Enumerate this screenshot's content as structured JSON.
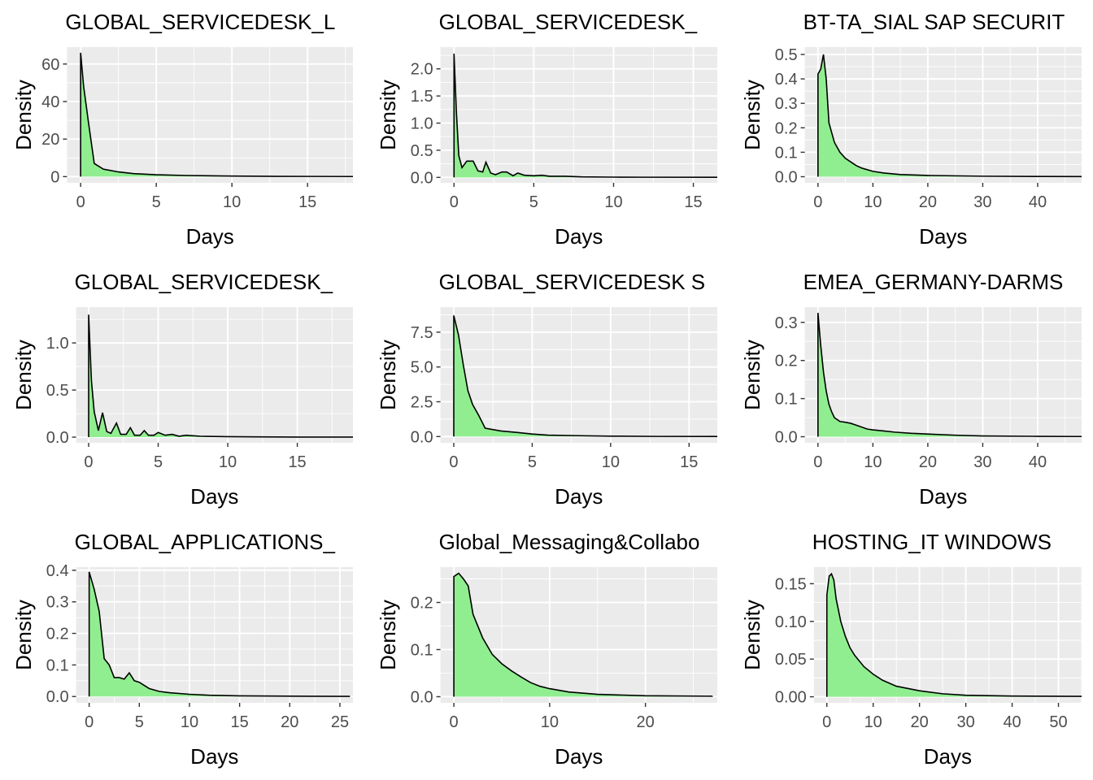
{
  "figure": {
    "background": "#ffffff",
    "panel_background": "#ebebeb",
    "grid_color": "#ffffff",
    "fill_color": "#90ee90",
    "line_color": "#000000",
    "tick_text_color": "#4d4d4d"
  },
  "chart_data": [
    {
      "type": "area",
      "title": "GLOBAL_SERVICEDESK_L",
      "xlabel": "Days",
      "ylabel": "Density",
      "xlim": [
        -0.9,
        18
      ],
      "ylim": [
        -3.3,
        69
      ],
      "xticks": [
        0,
        5,
        10,
        15
      ],
      "yticks": [
        0,
        20,
        40,
        60
      ],
      "x": [
        0,
        0.2,
        0.5,
        0.9,
        1.5,
        2.5,
        3.5,
        5,
        7,
        10,
        13,
        18
      ],
      "y": [
        66,
        48,
        30,
        7,
        4,
        2.5,
        1.6,
        1.0,
        0.6,
        0.3,
        0.15,
        0.05
      ]
    },
    {
      "type": "area",
      "title": "GLOBAL_SERVICEDESK_",
      "xlabel": "Days",
      "ylabel": "Density",
      "xlim": [
        -0.85,
        16.5
      ],
      "ylim": [
        -0.1,
        2.4
      ],
      "xticks": [
        0,
        5,
        10,
        15
      ],
      "yticks": [
        0,
        0.5,
        1.0,
        1.5,
        2.0
      ],
      "x": [
        0,
        0.15,
        0.3,
        0.5,
        0.8,
        1.2,
        1.5,
        1.8,
        2.0,
        2.3,
        2.6,
        3.0,
        3.3,
        3.7,
        4.0,
        4.4,
        5.0,
        5.5,
        6,
        7,
        8,
        10,
        12,
        16.5
      ],
      "y": [
        2.28,
        1.2,
        0.4,
        0.18,
        0.3,
        0.3,
        0.12,
        0.1,
        0.28,
        0.08,
        0.05,
        0.1,
        0.1,
        0.03,
        0.08,
        0.04,
        0.03,
        0.04,
        0.02,
        0.02,
        0.01,
        0.005,
        0.003,
        0.002
      ]
    },
    {
      "type": "area",
      "title": "BT-TA_SIAL SAP SECURIT",
      "xlabel": "Days",
      "ylabel": "Density",
      "xlim": [
        -2.4,
        48
      ],
      "ylim": [
        -0.025,
        0.53
      ],
      "xticks": [
        0,
        10,
        20,
        30,
        40
      ],
      "yticks": [
        0,
        0.1,
        0.2,
        0.3,
        0.4,
        0.5
      ],
      "x": [
        0,
        0.5,
        1.0,
        1.5,
        2,
        3,
        4,
        5,
        6,
        7,
        8,
        10,
        12,
        15,
        20,
        30,
        40,
        48
      ],
      "y": [
        0.42,
        0.44,
        0.5,
        0.4,
        0.22,
        0.14,
        0.1,
        0.075,
        0.06,
        0.045,
        0.035,
        0.022,
        0.015,
        0.009,
        0.005,
        0.002,
        0.001,
        0.0005
      ]
    },
    {
      "type": "area",
      "title": "GLOBAL_SERVICEDESK_",
      "xlabel": "Days",
      "ylabel": "Density",
      "xlim": [
        -0.9,
        19
      ],
      "ylim": [
        -0.06,
        1.38
      ],
      "xticks": [
        0,
        5,
        10,
        15
      ],
      "yticks": [
        0,
        0.5,
        1.0
      ],
      "x": [
        0,
        0.2,
        0.4,
        0.7,
        1.0,
        1.3,
        1.6,
        2.0,
        2.3,
        2.7,
        3.0,
        3.3,
        3.7,
        4.0,
        4.3,
        4.7,
        5.0,
        5.5,
        6.0,
        6.5,
        7.0,
        8,
        10,
        12,
        15,
        19
      ],
      "y": [
        1.3,
        0.6,
        0.27,
        0.07,
        0.26,
        0.06,
        0.04,
        0.15,
        0.03,
        0.03,
        0.1,
        0.02,
        0.02,
        0.07,
        0.02,
        0.02,
        0.05,
        0.02,
        0.03,
        0.01,
        0.02,
        0.01,
        0.005,
        0.003,
        0.001,
        0.001
      ]
    },
    {
      "type": "area",
      "title": "GLOBAL_SERVICEDESK S",
      "xlabel": "Days",
      "ylabel": "Density",
      "xlim": [
        -0.85,
        16.8
      ],
      "ylim": [
        -0.45,
        9.3
      ],
      "xticks": [
        0,
        5,
        10,
        15
      ],
      "yticks": [
        0,
        2.5,
        5.0,
        7.5
      ],
      "x": [
        0,
        0.3,
        0.6,
        0.9,
        1.2,
        1.6,
        2,
        3,
        4,
        5,
        6,
        8,
        10,
        13,
        16.8
      ],
      "y": [
        8.7,
        7.3,
        5.2,
        3.3,
        2.3,
        1.5,
        0.6,
        0.4,
        0.3,
        0.18,
        0.1,
        0.06,
        0.03,
        0.01,
        0.005
      ]
    },
    {
      "type": "area",
      "title": "EMEA_GERMANY-DARMS",
      "xlabel": "Days",
      "ylabel": "Density",
      "xlim": [
        -2.4,
        48
      ],
      "ylim": [
        -0.016,
        0.34
      ],
      "xticks": [
        0,
        10,
        20,
        30,
        40
      ],
      "yticks": [
        0,
        0.1,
        0.2,
        0.3
      ],
      "x": [
        0,
        0.5,
        1,
        1.5,
        2,
        2.5,
        3,
        4,
        5,
        6,
        7,
        8,
        9,
        10,
        12,
        14,
        17,
        20,
        25,
        30,
        40,
        48
      ],
      "y": [
        0.325,
        0.24,
        0.17,
        0.12,
        0.085,
        0.065,
        0.05,
        0.04,
        0.038,
        0.035,
        0.03,
        0.025,
        0.02,
        0.018,
        0.015,
        0.012,
        0.009,
        0.007,
        0.004,
        0.002,
        0.001,
        0.0005
      ]
    },
    {
      "type": "area",
      "title": "GLOBAL_APPLICATIONS_",
      "xlabel": "Days",
      "ylabel": "Density",
      "xlim": [
        -1.3,
        26.3
      ],
      "ylim": [
        -0.02,
        0.41
      ],
      "xticks": [
        0,
        5,
        10,
        15,
        20,
        25
      ],
      "yticks": [
        0,
        0.1,
        0.2,
        0.3,
        0.4
      ],
      "x": [
        0,
        0.5,
        1,
        1.5,
        2,
        2.5,
        3,
        3.5,
        4,
        4.5,
        5,
        5.5,
        6,
        7,
        8,
        10,
        12,
        15,
        20,
        26
      ],
      "y": [
        0.395,
        0.34,
        0.27,
        0.12,
        0.1,
        0.06,
        0.06,
        0.055,
        0.075,
        0.05,
        0.045,
        0.035,
        0.025,
        0.016,
        0.012,
        0.007,
        0.004,
        0.002,
        0.001,
        0.0005
      ]
    },
    {
      "type": "area",
      "title": "Global_Messaging&Collabo",
      "xlabel": "Days",
      "ylabel": "Density",
      "xlim": [
        -1.4,
        27.5
      ],
      "ylim": [
        -0.013,
        0.275
      ],
      "xticks": [
        0,
        10,
        20
      ],
      "yticks": [
        0,
        0.1,
        0.2
      ],
      "x": [
        0,
        0.5,
        1,
        1.5,
        2,
        2.5,
        3,
        4,
        5,
        6,
        7,
        8,
        9,
        10,
        12,
        15,
        20,
        27
      ],
      "y": [
        0.255,
        0.262,
        0.25,
        0.235,
        0.175,
        0.15,
        0.125,
        0.09,
        0.07,
        0.055,
        0.042,
        0.03,
        0.022,
        0.017,
        0.01,
        0.005,
        0.002,
        0.001
      ]
    },
    {
      "type": "area",
      "title": "HOSTING_IT WINDOWS",
      "xlabel": "Days",
      "ylabel": "Density",
      "xlim": [
        -2.8,
        55
      ],
      "ylim": [
        -0.008,
        0.172
      ],
      "xticks": [
        0,
        10,
        20,
        30,
        40,
        50
      ],
      "yticks": [
        0,
        0.05,
        0.1,
        0.15
      ],
      "x": [
        0,
        0.5,
        1,
        1.5,
        2,
        3,
        4,
        5,
        6,
        8,
        10,
        12,
        15,
        20,
        25,
        30,
        40,
        55
      ],
      "y": [
        0.135,
        0.16,
        0.163,
        0.155,
        0.13,
        0.1,
        0.08,
        0.065,
        0.055,
        0.04,
        0.03,
        0.022,
        0.014,
        0.008,
        0.004,
        0.002,
        0.001,
        0.0005
      ]
    }
  ]
}
